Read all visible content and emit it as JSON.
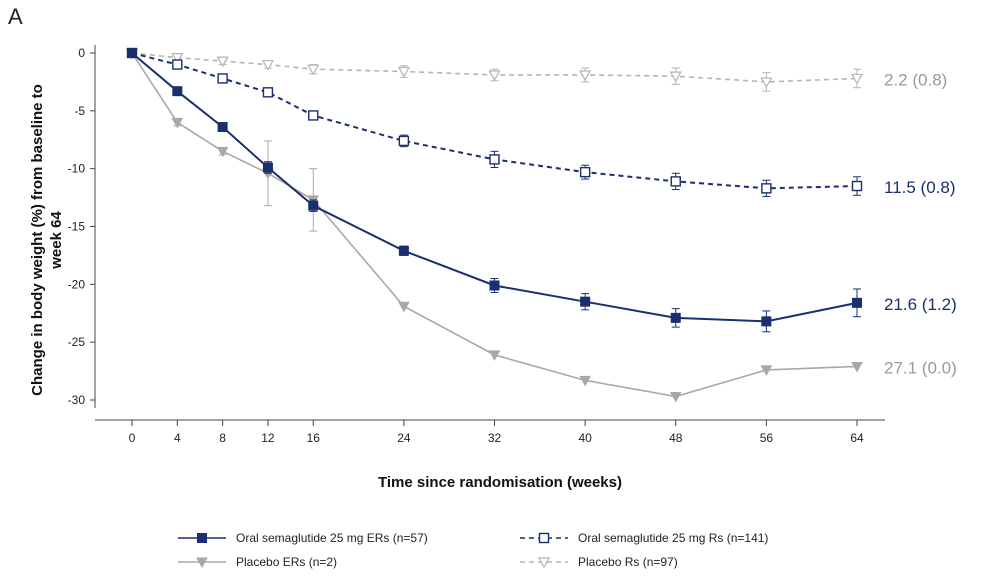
{
  "panel_label": "A",
  "chart_data": {
    "type": "line",
    "xlabel": "Time since randomisation (weeks)",
    "ylabel": "Change in body weight (%) from baseline to week 64",
    "x_ticks": [
      0,
      4,
      8,
      12,
      16,
      24,
      32,
      40,
      48,
      56,
      64
    ],
    "y_ticks": [
      0,
      -5,
      -10,
      -15,
      -20,
      -25,
      -30
    ],
    "xlim": [
      0,
      64
    ],
    "ylim": [
      -30,
      0
    ],
    "grid": false,
    "legend_position": "bottom",
    "series": [
      {
        "name": "Oral semaglutide 25 mg ERs (n=57)",
        "color": "#1b2f6e",
        "line_style": "solid",
        "marker": "filled-square",
        "x": [
          0,
          4,
          8,
          12,
          16,
          24,
          32,
          40,
          48,
          56,
          64
        ],
        "y": [
          0,
          -3.3,
          -6.4,
          -9.9,
          -13.2,
          -17.1,
          -20.1,
          -21.5,
          -22.9,
          -23.2,
          -21.6
        ],
        "error": [
          0,
          0.3,
          0.3,
          0.5,
          0.5,
          0.4,
          0.6,
          0.7,
          0.8,
          0.9,
          1.2
        ],
        "end_label": "21.6 (1.2)"
      },
      {
        "name": "Oral semaglutide 25 mg Rs (n=141)",
        "color": "#1b2f6e",
        "line_style": "dashed",
        "marker": "open-square",
        "x": [
          0,
          4,
          8,
          12,
          16,
          24,
          32,
          40,
          48,
          56,
          64
        ],
        "y": [
          0,
          -1.0,
          -2.2,
          -3.4,
          -5.4,
          -7.6,
          -9.2,
          -10.3,
          -11.1,
          -11.7,
          -11.5
        ],
        "error": [
          0,
          0.2,
          0.3,
          0.3,
          0.3,
          0.5,
          0.7,
          0.6,
          0.7,
          0.7,
          0.8
        ],
        "end_label": "11.5 (0.8)"
      },
      {
        "name": "Placebo ERs (n=2)",
        "color": "#a8a8a8",
        "line_style": "solid",
        "marker": "filled-triangle-down",
        "x": [
          0,
          4,
          8,
          12,
          16,
          24,
          32,
          40,
          48,
          56,
          64
        ],
        "y": [
          0,
          -6.0,
          -8.5,
          -10.4,
          -12.7,
          -21.9,
          -26.1,
          -28.3,
          -29.7,
          -27.4,
          -27.1
        ],
        "error": [
          0,
          0.3,
          0.3,
          2.8,
          2.7,
          0,
          0,
          0,
          0,
          0,
          0
        ],
        "end_label": "27.1 (0.0)"
      },
      {
        "name": "Placebo Rs (n=97)",
        "color": "#b4b4b4",
        "line_style": "dashed",
        "marker": "open-triangle-down",
        "x": [
          0,
          4,
          8,
          12,
          16,
          24,
          32,
          40,
          48,
          56,
          64
        ],
        "y": [
          0,
          -0.4,
          -0.7,
          -1.0,
          -1.4,
          -1.6,
          -1.9,
          -1.9,
          -2.0,
          -2.5,
          -2.2
        ],
        "error": [
          0,
          0.2,
          0.3,
          0.3,
          0.4,
          0.5,
          0.5,
          0.6,
          0.7,
          0.8,
          0.8
        ],
        "end_label": "2.2 (0.8)"
      }
    ]
  }
}
